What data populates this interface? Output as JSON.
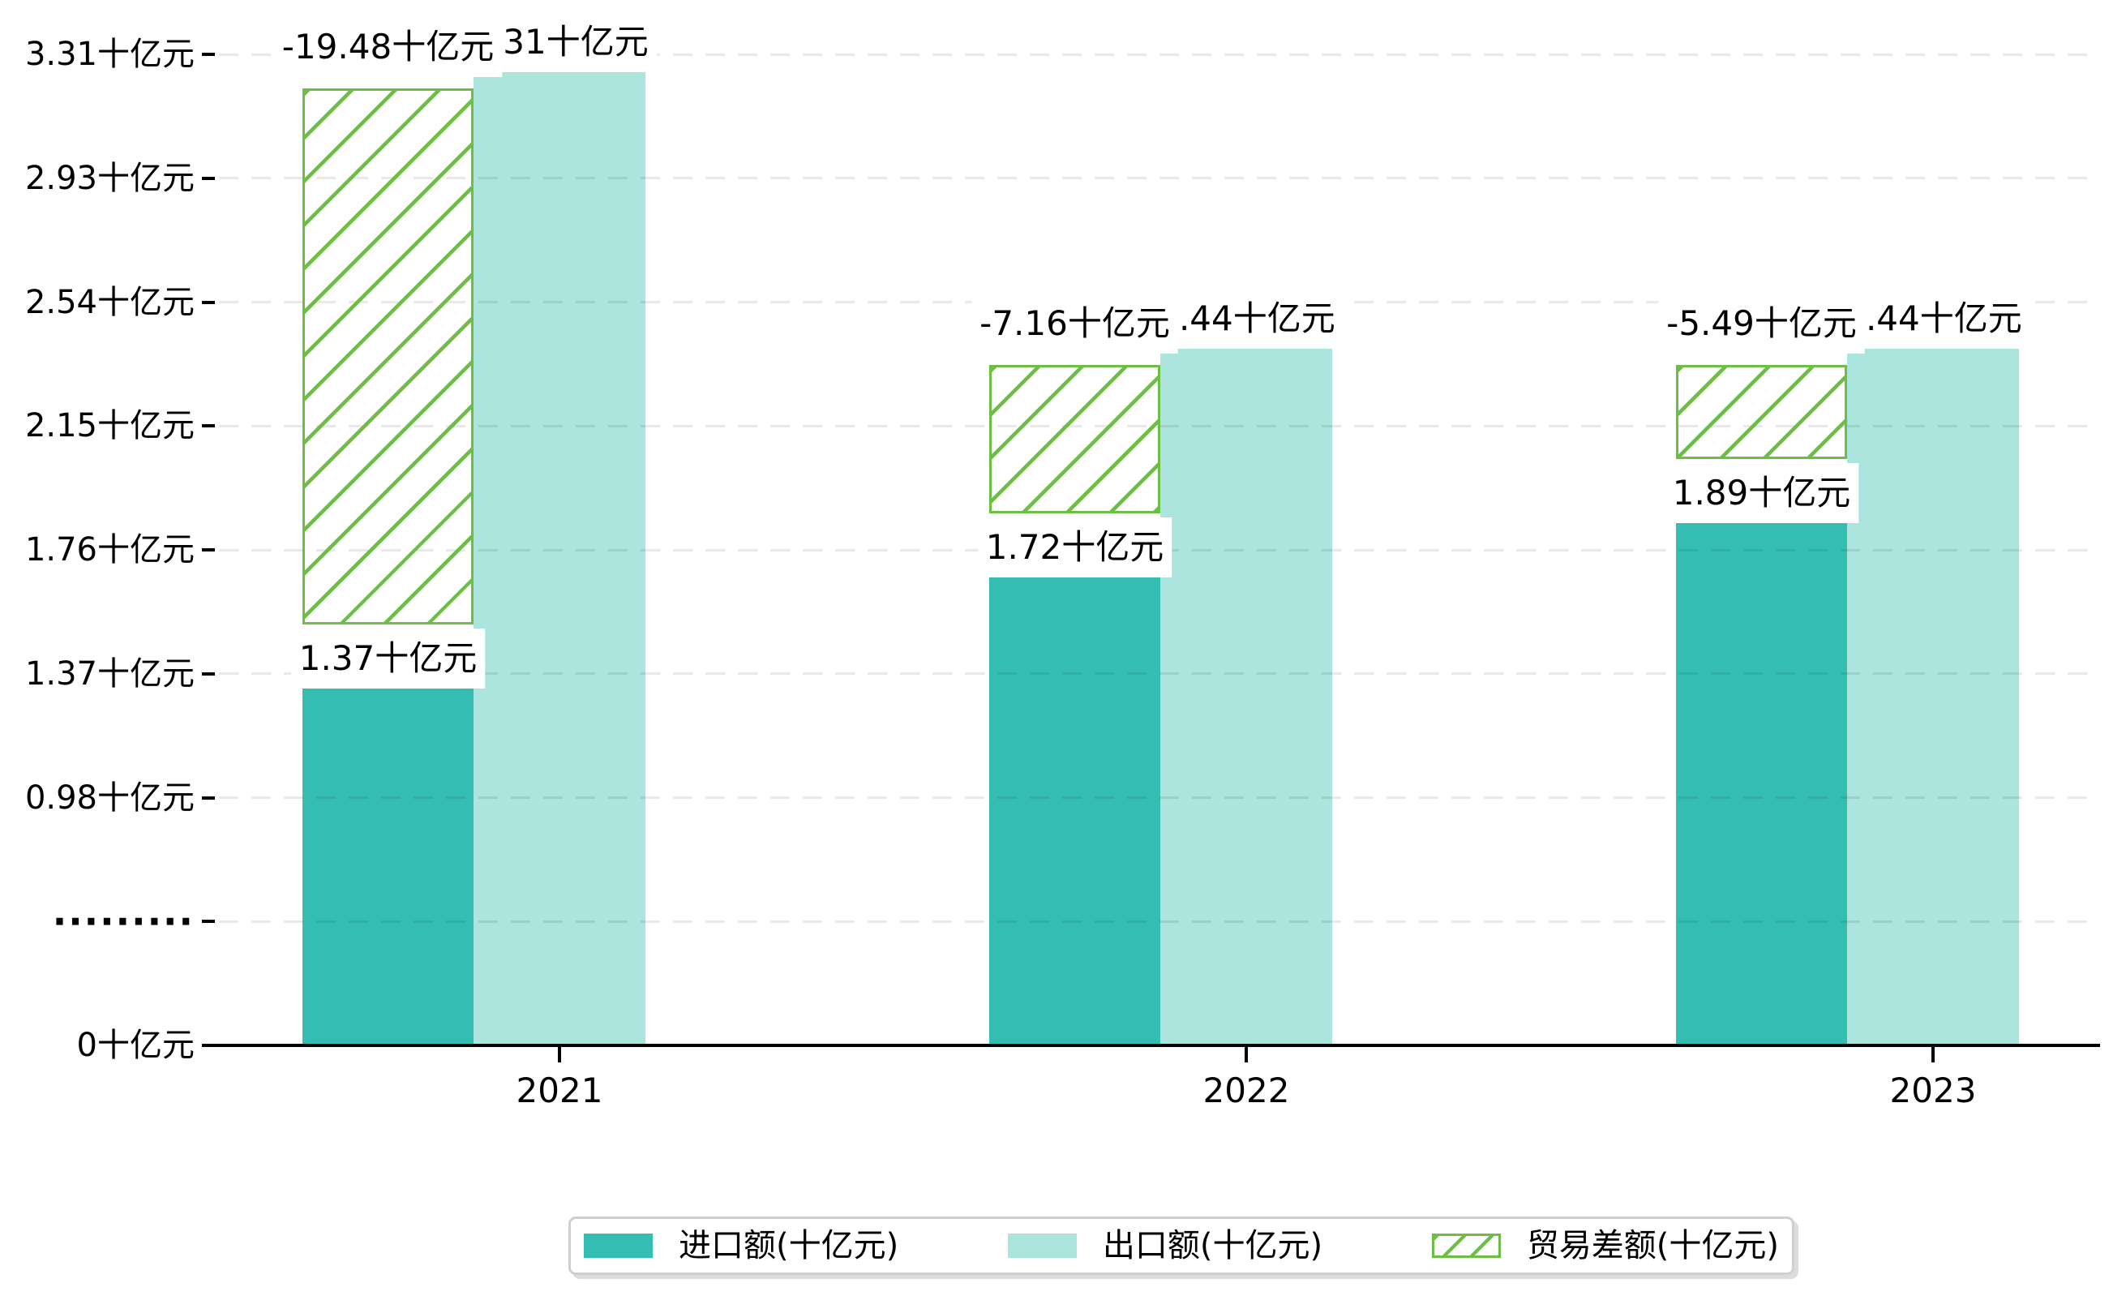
{
  "chart_data": {
    "type": "bar",
    "categories": [
      "2021",
      "2022",
      "2023"
    ],
    "series": [
      {
        "name": "进口额(十亿元)",
        "role": "import",
        "color": "#34beb2",
        "values": [
          1.37,
          1.72,
          1.89
        ],
        "labels": [
          "1.37十亿元",
          "1.72十亿元",
          "1.89十亿元"
        ]
      },
      {
        "name": "出口额(十亿元)",
        "role": "export",
        "color": "#abe5dd",
        "values": [
          3.31,
          2.44,
          2.44
        ],
        "labels": [
          "3.31十亿元",
          "2.44十亿元",
          "2.44十亿元"
        ]
      },
      {
        "name": "贸易差额(十亿元)",
        "role": "trade-balance",
        "color": "#6cbe45",
        "pattern": "diagonal-hatch",
        "values": [
          -19.48,
          -7.16,
          -5.49
        ],
        "labels": [
          "-19.48十亿元",
          "-7.16十亿元",
          "-5.49十亿元"
        ]
      }
    ],
    "y_axis": {
      "unit": "十亿元",
      "tick_labels": [
        "3.31十亿元",
        "2.93十亿元",
        "2.54十亿元",
        "2.15十亿元",
        "1.76十亿元",
        "1.37十亿元",
        "0.98十亿元",
        "·········",
        "0十亿元"
      ],
      "tick_values": [
        3.31,
        2.93,
        2.54,
        2.15,
        1.76,
        1.37,
        0.98,
        null,
        0
      ],
      "axis_break": true,
      "grid": "dashed-horizontal"
    },
    "x_axis": {
      "tick_labels": [
        "2021",
        "2022",
        "2023"
      ]
    },
    "legend": {
      "position": "bottom-center",
      "entries": [
        "进口额(十亿元)",
        "出口额(十亿元)",
        "贸易差额(十亿元)"
      ]
    }
  },
  "colors": {
    "import_bar": "#34beb2",
    "export_bar": "#abe5dd",
    "balance_hatch": "#6cbe45",
    "axis": "#000000",
    "text": "#000000",
    "label_background": "#ffffff",
    "legend_border": "#cfcfcf"
  }
}
